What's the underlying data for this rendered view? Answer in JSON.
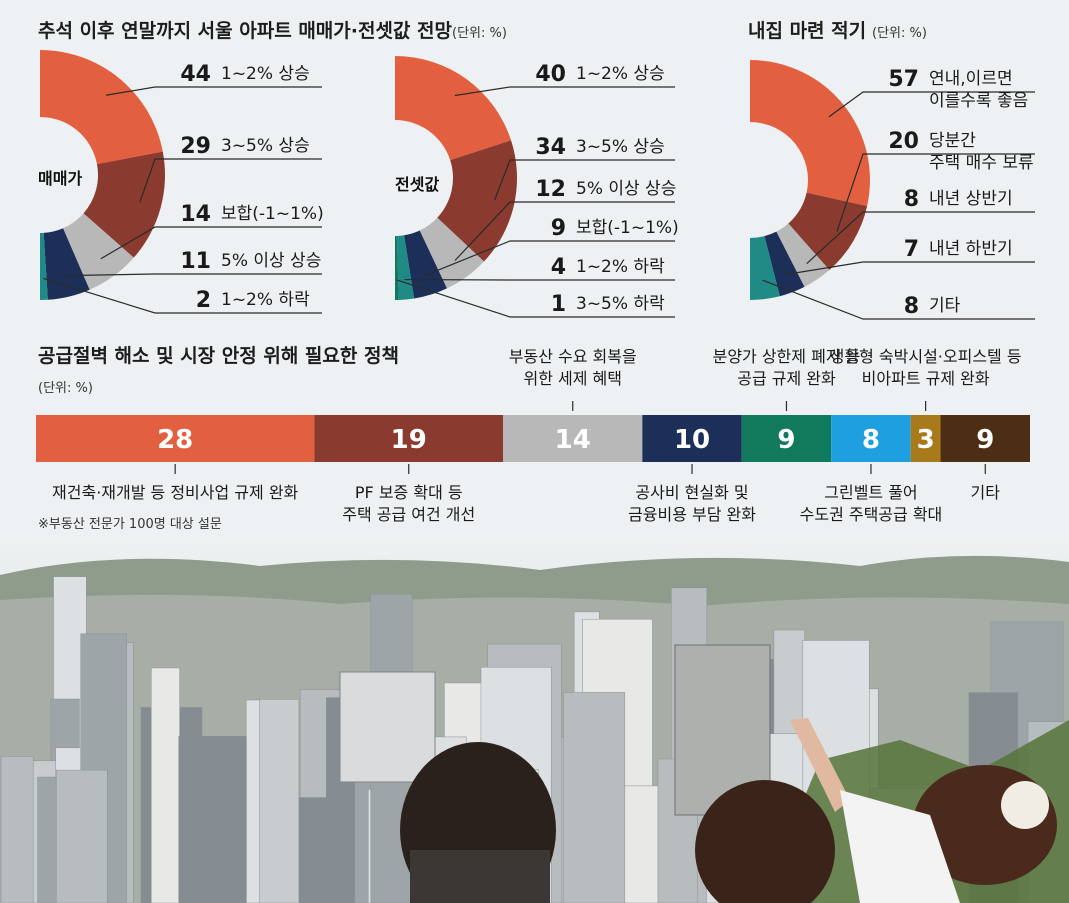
{
  "charts_colors": {
    "orange": "#e2603f",
    "brown": "#8a3a2e",
    "grey": "#b8b8b8",
    "navy": "#1b2f58",
    "teal": "#1f8a86",
    "green": "#117a5c",
    "skyblue": "#1d9fe0",
    "gold": "#a87a1c",
    "darkbrown": "#4b2e14"
  },
  "chart_data": [
    {
      "type": "pie",
      "title": "추석 이후 연말까지 서울 아파트 매매가·전셋값 전망",
      "unit": "(단위: %)",
      "name": "매매가",
      "labels": [
        "1~2% 상승",
        "3~5% 상승",
        "보합(-1~1%)",
        "5% 이상 상승",
        "1~2% 하락"
      ],
      "values": [
        44,
        29,
        14,
        11,
        2
      ]
    },
    {
      "type": "pie",
      "name": "전셋값",
      "labels": [
        "1~2% 상승",
        "3~5% 상승",
        "5% 이상 상승",
        "보합(-1~1%)",
        "1~2% 하락",
        "3~5% 하락"
      ],
      "values": [
        40,
        34,
        12,
        9,
        4,
        1
      ]
    },
    {
      "type": "pie",
      "title": "내집 마련 적기",
      "unit": "(단위: %)",
      "labels": [
        "연내,이르면 이를수록 좋음",
        "당분간 주택 매수 보류",
        "내년 상반기",
        "내년 하반기",
        "기타"
      ],
      "label_lines": [
        [
          "연내,이르면",
          "이를수록 좋음"
        ],
        [
          "당분간",
          "주택 매수 보류"
        ],
        [
          "내년 상반기"
        ],
        [
          "내년 하반기"
        ],
        [
          "기타"
        ]
      ],
      "values": [
        57,
        20,
        8,
        7,
        8
      ]
    },
    {
      "type": "bar",
      "orientation": "stacked-horizontal",
      "title": "공급절벽 해소 및 시장 안정 위해 필요한 정책",
      "unit": "(단위: %)",
      "categories": [
        "재건축·재개발 등 정비사업 규제 완화",
        "PF 보증 확대 등 주택 공급 여건 개선",
        "부동산 수요 회복을 위한 세제 혜택",
        "공사비 현실화 및 금융비용 부담 완화",
        "분양가 상한제 폐지 등 공급 규제 완화",
        "그린벨트 풀어 수도권 주택공급 확대",
        "생활형 숙박시설·오피스텔 등 비아파트 규제 완화",
        "기타"
      ],
      "label_lines": [
        [
          "재건축·재개발 등 정비사업 규제 완화"
        ],
        [
          "PF 보증 확대 등",
          "주택 공급 여건 개선"
        ],
        [
          "부동산 수요 회복을",
          "위한 세제 혜택"
        ],
        [
          "공사비 현실화 및",
          "금융비용 부담 완화"
        ],
        [
          "분양가 상한제 폐지 등",
          "공급 규제 완화"
        ],
        [
          "그린벨트 풀어",
          "수도권 주택공급 확대"
        ],
        [
          "생활형 숙박시설·오피스텔 등",
          "비아파트 규제 완화"
        ],
        [
          "기타"
        ]
      ],
      "values": [
        28,
        19,
        14,
        10,
        9,
        8,
        3,
        9
      ]
    }
  ],
  "note": "※부동산 전문가 100명 대상 설문"
}
